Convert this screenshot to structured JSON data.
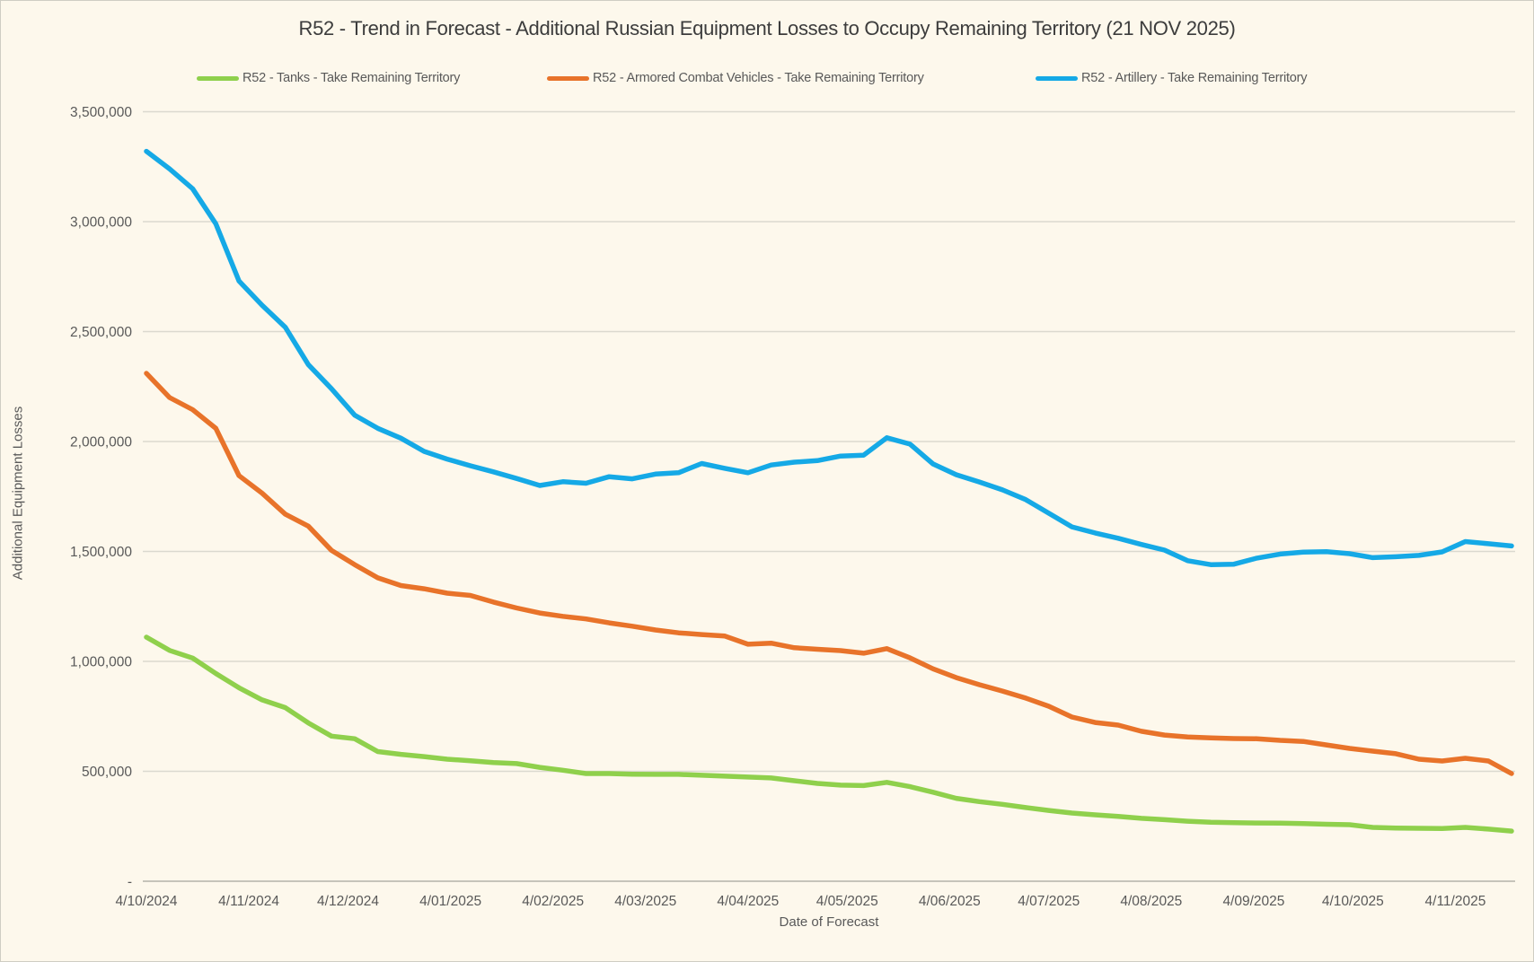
{
  "chart_data": {
    "type": "line",
    "title": "R52 - Trend in Forecast - Additional Russian Equipment Losses to Occupy Remaining Territory (21 NOV 2025)",
    "xlabel": "Date of Forecast",
    "ylabel": "Additional Equipment Losses",
    "legend_position": "top",
    "grid": "horizontal",
    "ylim": [
      0,
      3500000
    ],
    "y_ticks": [
      {
        "label": "-",
        "value": 0
      },
      {
        "label": "500,000",
        "value": 500000
      },
      {
        "label": "1,000,000",
        "value": 1000000
      },
      {
        "label": "1,500,000",
        "value": 1500000
      },
      {
        "label": "2,000,000",
        "value": 2000000
      },
      {
        "label": "2,500,000",
        "value": 2500000
      },
      {
        "label": "3,000,000",
        "value": 3000000
      },
      {
        "label": "3,500,000",
        "value": 3500000
      }
    ],
    "x_ticks": [
      {
        "label": "4/10/2024",
        "day": 0
      },
      {
        "label": "4/11/2024",
        "day": 31
      },
      {
        "label": "4/12/2024",
        "day": 61
      },
      {
        "label": "4/01/2025",
        "day": 92
      },
      {
        "label": "4/02/2025",
        "day": 123
      },
      {
        "label": "4/03/2025",
        "day": 151
      },
      {
        "label": "4/04/2025",
        "day": 182
      },
      {
        "label": "4/05/2025",
        "day": 212
      },
      {
        "label": "4/06/2025",
        "day": 243
      },
      {
        "label": "4/07/2025",
        "day": 273
      },
      {
        "label": "4/08/2025",
        "day": 304
      },
      {
        "label": "4/09/2025",
        "day": 335
      },
      {
        "label": "4/10/2025",
        "day": 365
      },
      {
        "label": "4/11/2025",
        "day": 396
      }
    ],
    "x_dates": [
      "4/10/2024",
      "11/10/2024",
      "18/10/2024",
      "25/10/2024",
      "1/11/2024",
      "8/11/2024",
      "15/11/2024",
      "22/11/2024",
      "29/11/2024",
      "6/12/2024",
      "13/12/2024",
      "20/12/2024",
      "27/12/2024",
      "3/01/2025",
      "10/01/2025",
      "17/01/2025",
      "24/01/2025",
      "31/01/2025",
      "7/02/2025",
      "14/02/2025",
      "21/02/2025",
      "28/02/2025",
      "7/03/2025",
      "14/03/2025",
      "21/03/2025",
      "28/03/2025",
      "4/04/2025",
      "11/04/2025",
      "18/04/2025",
      "25/04/2025",
      "2/05/2025",
      "9/05/2025",
      "16/05/2025",
      "23/05/2025",
      "30/05/2025",
      "6/06/2025",
      "13/06/2025",
      "20/06/2025",
      "27/06/2025",
      "4/07/2025",
      "11/07/2025",
      "18/07/2025",
      "25/07/2025",
      "1/08/2025",
      "8/08/2025",
      "15/08/2025",
      "22/08/2025",
      "29/08/2025",
      "5/09/2025",
      "12/09/2025",
      "19/09/2025",
      "26/09/2025",
      "3/10/2025",
      "10/10/2025",
      "17/10/2025",
      "24/10/2025",
      "31/10/2025",
      "7/11/2025",
      "14/11/2025",
      "21/11/2025"
    ],
    "series": [
      {
        "name": "R52 - Tanks - Take Remaining Territory",
        "color": "#8FD04C",
        "values": [
          1110000,
          1050000,
          1015000,
          945000,
          880000,
          825000,
          790000,
          720000,
          660000,
          648000,
          590000,
          577000,
          567000,
          555000,
          548000,
          540000,
          535000,
          518000,
          505000,
          490000,
          490000,
          487000,
          486000,
          486000,
          482000,
          478000,
          474000,
          470000,
          457000,
          445000,
          437000,
          435000,
          450000,
          430000,
          405000,
          377000,
          362000,
          350000,
          335000,
          322000,
          310000,
          302000,
          295000,
          286000,
          280000,
          273000,
          268000,
          266000,
          265000,
          264000,
          262000,
          259000,
          257000,
          245000,
          242000,
          241000,
          240000,
          245000,
          237000,
          228000
        ]
      },
      {
        "name": "R52 - Armored Combat Vehicles - Take Remaining Territory",
        "color": "#E8732A",
        "values": [
          2310000,
          2200000,
          2145000,
          2060000,
          1845000,
          1765000,
          1670000,
          1615000,
          1505000,
          1440000,
          1380000,
          1345000,
          1330000,
          1310000,
          1300000,
          1270000,
          1243000,
          1220000,
          1205000,
          1193000,
          1175000,
          1160000,
          1143000,
          1130000,
          1122000,
          1115000,
          1078000,
          1083000,
          1062000,
          1055000,
          1049000,
          1037000,
          1058000,
          1016000,
          966000,
          926000,
          894000,
          865000,
          833000,
          796000,
          747000,
          722000,
          710000,
          682000,
          665000,
          656000,
          652000,
          649000,
          648000,
          641000,
          636000,
          620000,
          604000,
          592000,
          580000,
          555000,
          547000,
          559000,
          547000,
          490000
        ]
      },
      {
        "name": "R52 - Artillery - Take Remaining Territory",
        "color": "#15A9E6",
        "values": [
          3320000,
          3240000,
          3150000,
          2990000,
          2730000,
          2620000,
          2520000,
          2350000,
          2240000,
          2120000,
          2060000,
          2015000,
          1955000,
          1920000,
          1890000,
          1862000,
          1832000,
          1800000,
          1817000,
          1810000,
          1840000,
          1830000,
          1852000,
          1858000,
          1900000,
          1878000,
          1858000,
          1893000,
          1906000,
          1913000,
          1934000,
          1938000,
          2017000,
          1988000,
          1898000,
          1849000,
          1816000,
          1780000,
          1736000,
          1674000,
          1612000,
          1584000,
          1560000,
          1532000,
          1506000,
          1458000,
          1440000,
          1442000,
          1470000,
          1488000,
          1497000,
          1499000,
          1490000,
          1472000,
          1476000,
          1482000,
          1498000,
          1545000,
          1535000,
          1525000
        ]
      }
    ]
  },
  "style": {
    "background": "#FDF8EC",
    "gridline_color": "#DBD9CF",
    "axis_line_color": "#C6C4BA",
    "tick_label_color": "#595959",
    "title_color": "#3C3C3C"
  }
}
